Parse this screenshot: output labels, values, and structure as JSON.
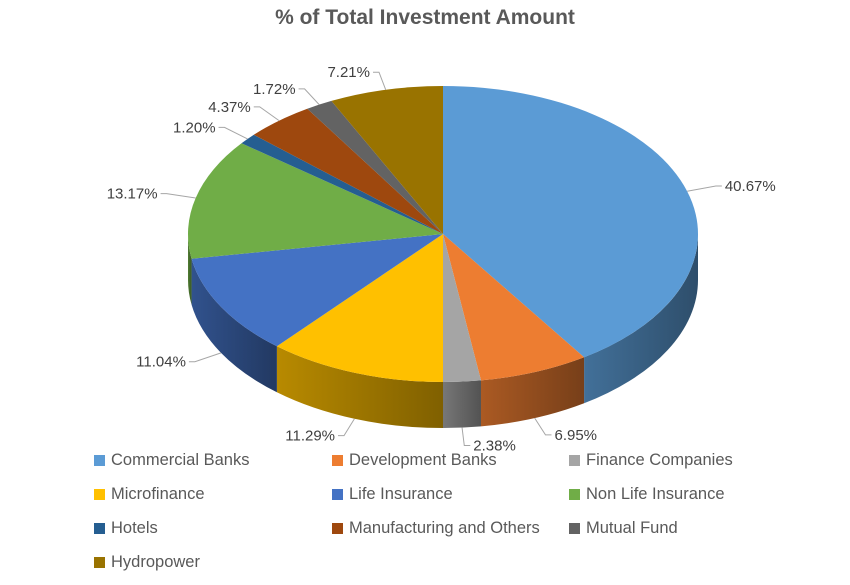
{
  "chart_data": {
    "type": "pie",
    "title": "% of Total Investment Amount",
    "legend_placement": "bottom",
    "three_d": true,
    "series": [
      {
        "name": "Commercial Banks",
        "value": 40.67,
        "label": "40.67%",
        "color": "#5B9BD5"
      },
      {
        "name": "Development Banks",
        "value": 6.95,
        "label": "6.95%",
        "color": "#ED7D31"
      },
      {
        "name": "Finance Companies",
        "value": 2.38,
        "label": "2.38%",
        "color": "#A5A5A5"
      },
      {
        "name": "Microfinance",
        "value": 11.29,
        "label": "11.29%",
        "color": "#FFC000"
      },
      {
        "name": "Life Insurance",
        "value": 11.04,
        "label": "11.04%",
        "color": "#4472C4"
      },
      {
        "name": "Non Life Insurance",
        "value": 13.17,
        "label": "13.17%",
        "color": "#70AD47"
      },
      {
        "name": "Hotels",
        "value": 1.2,
        "label": "1.20%",
        "color": "#255E91"
      },
      {
        "name": "Manufacturing and Others",
        "value": 4.37,
        "label": "4.37%",
        "color": "#9E480E"
      },
      {
        "name": "Mutual Fund",
        "value": 1.72,
        "label": "1.72%",
        "color": "#636363"
      },
      {
        "name": "Hydropower",
        "value": 7.21,
        "label": "7.21%",
        "color": "#997300"
      }
    ]
  }
}
